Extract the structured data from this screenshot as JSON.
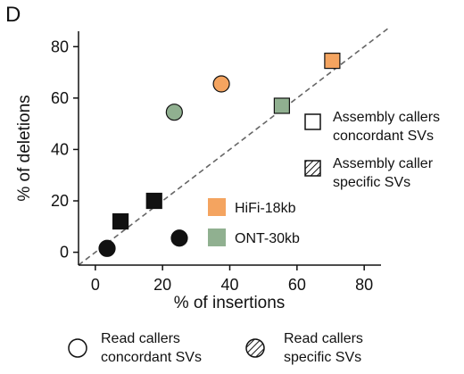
{
  "panel_label": "D",
  "chart_data": {
    "type": "scatter",
    "xlabel": "% of insertions",
    "ylabel": "% of deletions",
    "xlim": [
      -5,
      85
    ],
    "ylim": [
      -5,
      86
    ],
    "xticks": [
      0,
      20,
      40,
      60,
      80
    ],
    "yticks": [
      0,
      20,
      40,
      60,
      80
    ],
    "diagonal": "y = x dashed reference line",
    "points": [
      {
        "x": 70.5,
        "y": 74.5,
        "shape": "square",
        "color": "#f4a460",
        "group": "HiFi-18kb",
        "caller": "Assembly callers concordant SVs"
      },
      {
        "x": 37.5,
        "y": 65.5,
        "shape": "circle",
        "color": "#f4a460",
        "group": "HiFi-18kb",
        "caller": "Read callers concordant SVs"
      },
      {
        "x": 55.5,
        "y": 57.0,
        "shape": "square",
        "color": "#90b090",
        "group": "ONT-30kb",
        "caller": "Assembly callers concordant SVs"
      },
      {
        "x": 23.5,
        "y": 54.5,
        "shape": "circle",
        "color": "#90b090",
        "group": "ONT-30kb",
        "caller": "Read callers concordant SVs"
      },
      {
        "x": 17.5,
        "y": 20.0,
        "shape": "square",
        "color": "#111111",
        "group": "",
        "caller": ""
      },
      {
        "x": 7.5,
        "y": 12.0,
        "shape": "square",
        "color": "#111111",
        "group": "",
        "caller": ""
      },
      {
        "x": 3.5,
        "y": 1.5,
        "shape": "circle",
        "color": "#111111",
        "group": "",
        "caller": ""
      },
      {
        "x": 25.0,
        "y": 5.5,
        "shape": "circle",
        "color": "#111111",
        "group": "",
        "caller": ""
      }
    ],
    "legend_colors": [
      {
        "label": "HiFi-18kb",
        "color": "#f4a460"
      },
      {
        "label": "ONT-30kb",
        "color": "#90b090"
      }
    ],
    "legend_shapes": [
      {
        "line1": "Assembly callers",
        "line2": "concordant SVs",
        "marker": "open-square"
      },
      {
        "line1": "Assembly caller",
        "line2": "specific SVs",
        "marker": "hatched-square"
      },
      {
        "line1": "Read callers",
        "line2": "concordant SVs",
        "marker": "open-circle"
      },
      {
        "line1": "Read callers",
        "line2": "specific SVs",
        "marker": "hatched-circle"
      }
    ]
  }
}
